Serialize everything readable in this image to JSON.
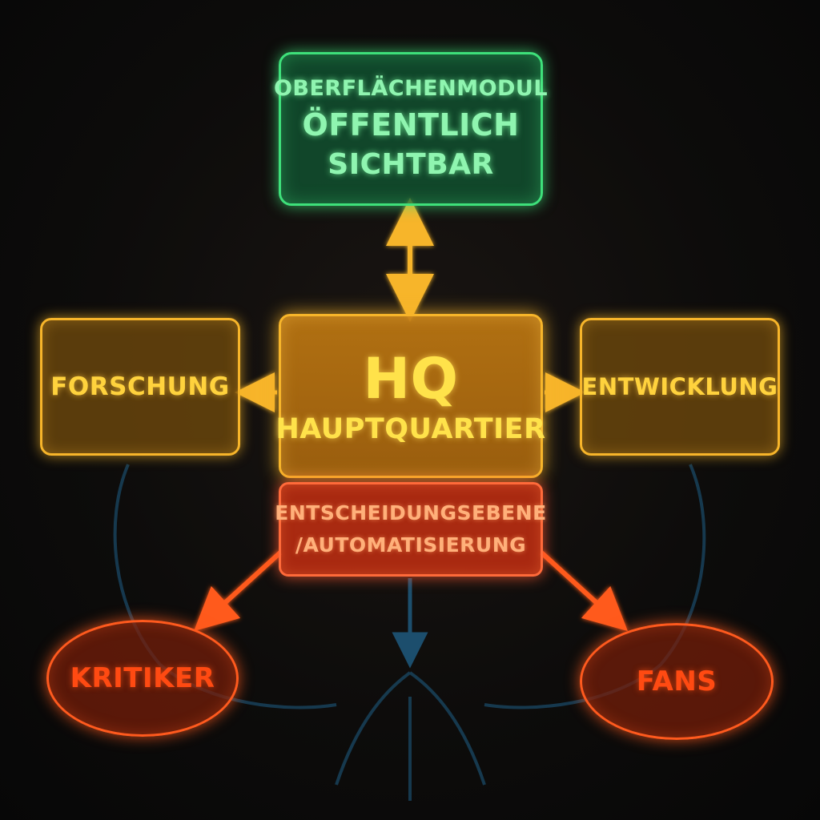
{
  "diagram": {
    "top_node": {
      "line1": "OBERFLÄCHENMODUL",
      "line2": "ÖFFENTLICH",
      "line3": "SICHTBAR"
    },
    "left_node": {
      "label": "FORSCHUNG"
    },
    "right_node": {
      "label": "ENTWICKLUNG"
    },
    "center_node": {
      "title": "HQ",
      "subtitle": "HAUPTQUARTIER"
    },
    "decision_node": {
      "line1": "ENTSCHEIDUNGSEBENE",
      "line2": "/AUTOMATISIERUNG"
    },
    "critics_node": {
      "label": "KRITIKER"
    },
    "fans_node": {
      "label": "FANS"
    }
  },
  "colors": {
    "green": "#3ee07a",
    "amber": "#f7b52a",
    "orange_red": "#ff6a3a",
    "red": "#ff5a1e",
    "faint_blue": "#1f5f86",
    "background": "#0d0c0b"
  }
}
